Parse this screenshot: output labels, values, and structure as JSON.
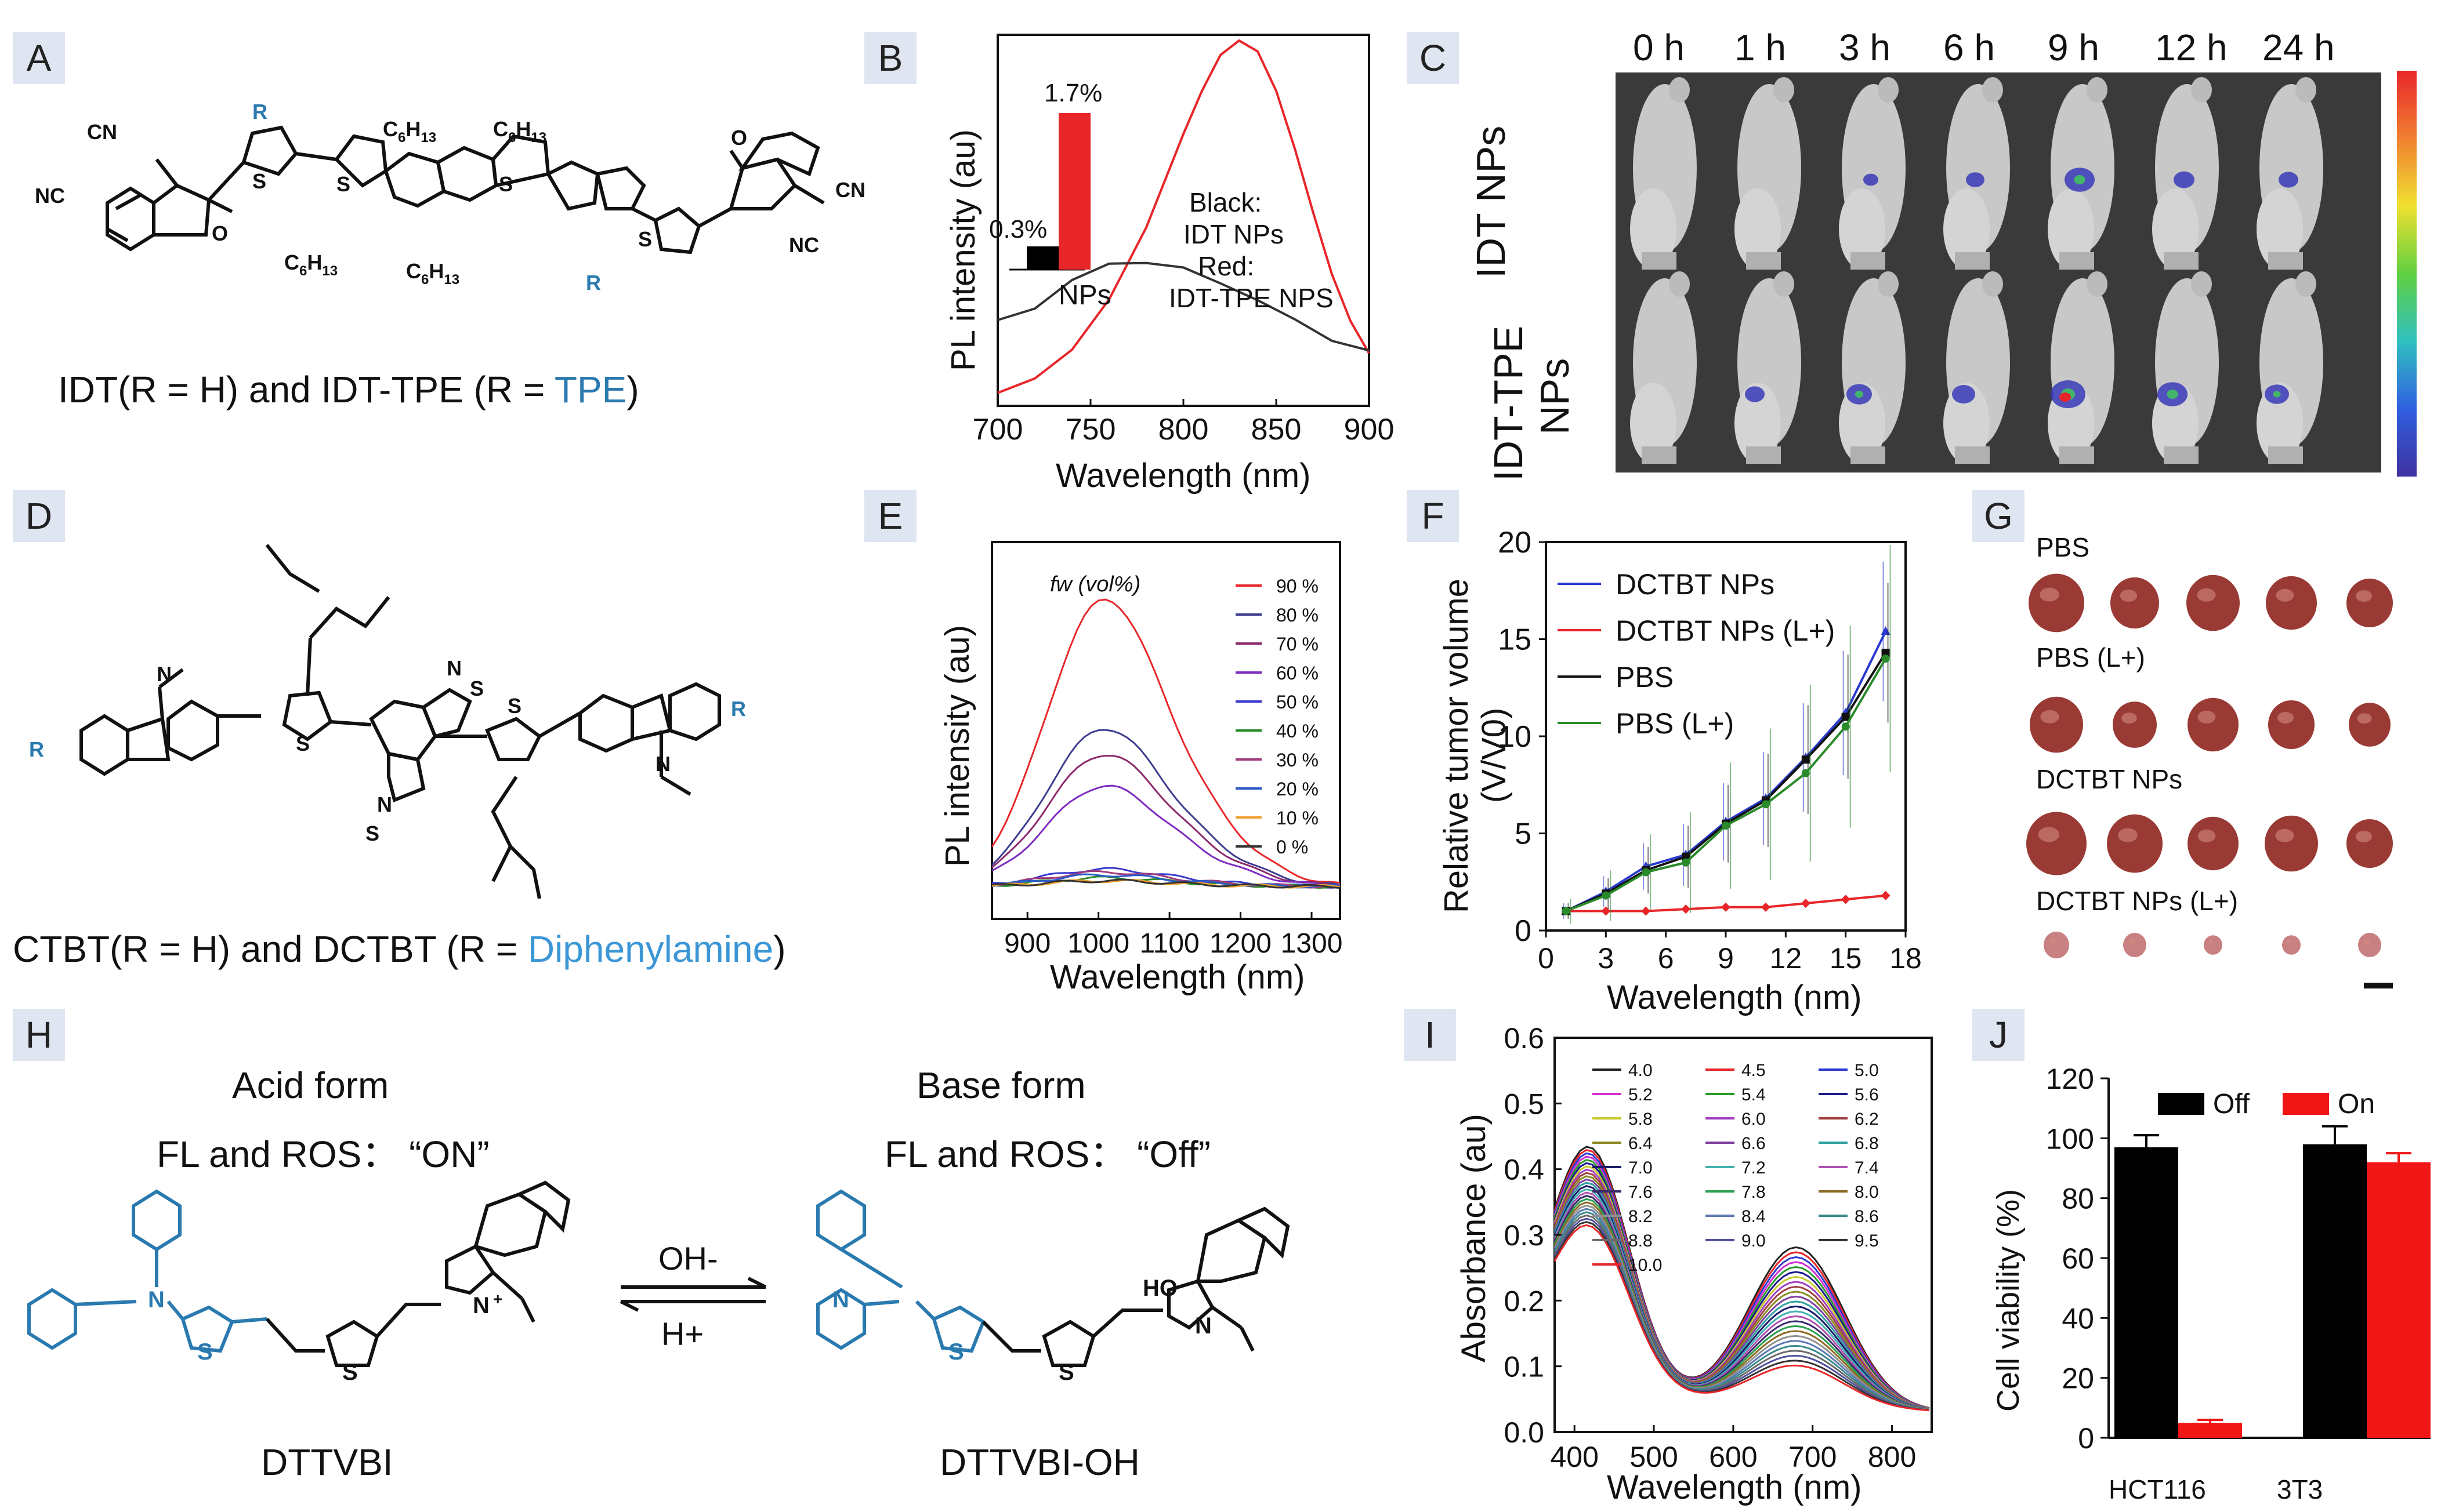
{
  "panels": {
    "A": {
      "letter": "A",
      "caption_prefix": "IDT(R = H) and IDT-TPE (R = ",
      "caption_highlight": "TPE",
      "caption_suffix": ")",
      "struct_labels": [
        "R",
        "R",
        "CN",
        "NC",
        "O",
        "CN",
        "NC",
        "O",
        "S",
        "S",
        "S",
        "S",
        "C6H13",
        "C6H13",
        "C6H13",
        "C6H13"
      ]
    },
    "B": {
      "letter": "B",
      "ylabel": "PL intensity (au)",
      "xlabel": "Wavelength (nm)",
      "xticks": [
        "700",
        "750",
        "800",
        "850",
        "900"
      ],
      "legend_black": "Black:",
      "legend_black_v": "IDT NPs",
      "legend_red": "Red:",
      "legend_red_v": "IDT-TPE NPS",
      "inset_black_val": "0.3%",
      "inset_red_val": "1.7%",
      "inset_xlabel": "NPs"
    },
    "C": {
      "letter": "C",
      "times": [
        "0 h",
        "1 h",
        "3 h",
        "6 h",
        "9 h",
        "12 h",
        "24 h"
      ],
      "row1": "IDT NPs",
      "row2a": "IDT-TPE",
      "row2b": "NPs"
    },
    "D": {
      "letter": "D",
      "caption_prefix": "CTBT(R = H) and DCTBT (R = ",
      "caption_highlight": "Diphenylamine",
      "caption_suffix": ")"
    },
    "E": {
      "letter": "E",
      "ylabel": "PL intensity (au)",
      "xlabel": "Wavelength (nm)",
      "xticks": [
        "900",
        "1000",
        "1100",
        "1200",
        "1300"
      ],
      "legend_title": "fw   (vol%)",
      "legend": [
        "90 %",
        "80 %",
        "70 %",
        "60 %",
        "50 %",
        "40 %",
        "30 %",
        "20 %",
        "10 %",
        "0 %"
      ]
    },
    "F": {
      "letter": "F",
      "ylabel": "Relative tumor volume",
      "ylabel2": "(V/V0)",
      "xlabel": "Wavelength (nm)",
      "xticks": [
        "0",
        "3",
        "6",
        "9",
        "12",
        "15",
        "18"
      ],
      "yticks": [
        "0",
        "5",
        "10",
        "15",
        "20"
      ],
      "legend": [
        "DCTBT NPs",
        "DCTBT NPs (L+)",
        "PBS",
        "PBS (L+)"
      ]
    },
    "G": {
      "letter": "G",
      "rows": [
        "PBS",
        "PBS (L+)",
        "DCTBT NPs",
        "DCTBT NPs (L+)"
      ]
    },
    "H": {
      "letter": "H",
      "acid_title": "Acid form",
      "acid_sub": "FL and ROS： “ON”",
      "base_title": "Base form",
      "base_sub": "FL and ROS：  “Off”",
      "arrow_top": "OH-",
      "arrow_bottom": "H+",
      "name_left": "DTTVBI",
      "name_right": "DTTVBI-OH"
    },
    "I": {
      "letter": "I",
      "ylabel": "Absorbance (au)",
      "xlabel": "Wavelength (nm)",
      "xticks": [
        "400",
        "500",
        "600",
        "700",
        "800"
      ],
      "yticks": [
        "0.0",
        "0.1",
        "0.2",
        "0.3",
        "0.4",
        "0.5",
        "0.6"
      ],
      "legend": [
        "4.0",
        "4.5",
        "5.0",
        "5.2",
        "5.4",
        "5.6",
        "5.8",
        "6.0",
        "6.2",
        "6.4",
        "6.6",
        "6.8",
        "7.0",
        "7.2",
        "7.4",
        "7.6",
        "7.8",
        "8.0",
        "8.2",
        "8.4",
        "8.6",
        "8.8",
        "9.0",
        "9.5",
        "10.0"
      ]
    },
    "J": {
      "letter": "J",
      "ylabel": "Cell viability (%)",
      "yticks": [
        "0",
        "20",
        "40",
        "60",
        "80",
        "100",
        "120"
      ],
      "legend": [
        "Off",
        "On"
      ],
      "groups": [
        "HCT116",
        "3T3"
      ]
    }
  },
  "chart_data": [
    {
      "panel": "B",
      "type": "line",
      "title": "",
      "xlabel": "Wavelength (nm)",
      "ylabel": "PL intensity (au)",
      "xlim": [
        700,
        900
      ],
      "series": [
        {
          "name": "IDT-TPE NPS",
          "color": "#e8262a",
          "x": [
            700,
            720,
            740,
            760,
            780,
            800,
            810,
            820,
            830,
            840,
            850,
            860,
            870,
            880,
            890,
            900
          ],
          "y": [
            0.02,
            0.06,
            0.14,
            0.28,
            0.48,
            0.74,
            0.86,
            0.96,
            1.0,
            0.97,
            0.86,
            0.7,
            0.52,
            0.35,
            0.22,
            0.13
          ]
        },
        {
          "name": "IDT NPs",
          "color": "#333333",
          "x": [
            700,
            720,
            740,
            760,
            780,
            800,
            820,
            840,
            860,
            880,
            900
          ],
          "y": [
            0.08,
            0.1,
            0.14,
            0.17,
            0.17,
            0.16,
            0.14,
            0.11,
            0.08,
            0.05,
            0.03
          ]
        }
      ],
      "inset": {
        "type": "bar",
        "categories": [
          "IDT NPs",
          "IDT-TPE NPS"
        ],
        "values": [
          0.3,
          1.7
        ],
        "unit": "%"
      }
    },
    {
      "panel": "E",
      "type": "line",
      "xlabel": "Wavelength (nm)",
      "ylabel": "PL intensity (au)",
      "xlim": [
        850,
        1340
      ],
      "series": [
        {
          "name": "90 %",
          "color": "#e8262a",
          "peak": 1.0
        },
        {
          "name": "80 %",
          "color": "#3d3d8f",
          "peak": 0.55
        },
        {
          "name": "70 %",
          "color": "#8b2a6b",
          "peak": 0.46
        },
        {
          "name": "60 %",
          "color": "#7d2cc0",
          "peak": 0.35
        },
        {
          "name": "50 %",
          "color": "#3a3ad0",
          "peak": 0.06
        },
        {
          "name": "40 %",
          "color": "#2a8a2a",
          "peak": 0.03
        },
        {
          "name": "30 %",
          "color": "#a03a7a",
          "peak": 0.05
        },
        {
          "name": "20 %",
          "color": "#2a5ac8",
          "peak": 0.04
        },
        {
          "name": "10 %",
          "color": "#f0a030",
          "peak": 0.02
        },
        {
          "name": "0 %",
          "color": "#333333",
          "peak": 0.02
        }
      ]
    },
    {
      "panel": "F",
      "type": "line",
      "xlabel": "Wavelength (nm)",
      "ylabel": "Relative tumor volume (V/V0)",
      "xlim": [
        0,
        18
      ],
      "ylim": [
        0,
        20
      ],
      "x": [
        1,
        3,
        5,
        7,
        9,
        11,
        13,
        15,
        17
      ],
      "series": [
        {
          "name": "DCTBT NPs",
          "color": "#2a3ad0",
          "values": [
            1.0,
            2.0,
            3.3,
            3.9,
            5.6,
            6.8,
            8.9,
            11.2,
            15.4
          ]
        },
        {
          "name": "DCTBT NPs (L+)",
          "color": "#e8262a",
          "values": [
            1.0,
            1.0,
            1.0,
            1.1,
            1.2,
            1.2,
            1.4,
            1.6,
            1.8
          ]
        },
        {
          "name": "PBS",
          "color": "#111111",
          "values": [
            1.0,
            1.9,
            3.1,
            3.8,
            5.5,
            6.7,
            8.8,
            11.0,
            14.3
          ]
        },
        {
          "name": "PBS (L+)",
          "color": "#2a8a2a",
          "values": [
            1.0,
            1.8,
            3.0,
            3.5,
            5.4,
            6.5,
            8.1,
            10.5,
            14.0
          ]
        }
      ]
    },
    {
      "panel": "I",
      "type": "line",
      "xlabel": "Wavelength (nm)",
      "ylabel": "Absorbance (au)",
      "xlim": [
        375,
        850
      ],
      "ylim": [
        0,
        0.6
      ],
      "series_count": 25
    },
    {
      "panel": "J",
      "type": "bar",
      "ylabel": "Cell viability (%)",
      "ylim": [
        0,
        120
      ],
      "categories": [
        "HCT116",
        "3T3"
      ],
      "series": [
        {
          "name": "Off",
          "color": "#000000",
          "values": [
            97,
            98
          ],
          "errors": [
            4,
            6
          ]
        },
        {
          "name": "On",
          "color": "#f01616",
          "values": [
            5,
            92
          ],
          "errors": [
            1,
            3
          ]
        }
      ]
    }
  ],
  "colors": {
    "accent_blue": "#2a7ab0",
    "light_blue": "#3b96d6",
    "letter_bg": "#dfe6f2",
    "red": "#e8262a"
  }
}
